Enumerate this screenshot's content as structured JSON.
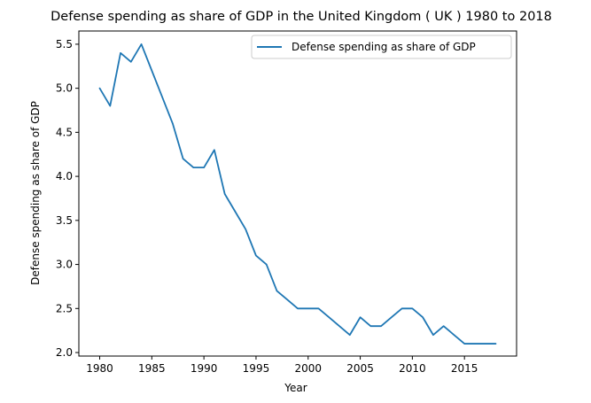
{
  "chart_data": {
    "type": "line",
    "title": "Defense spending as share of GDP in the United Kingdom ( UK ) 1980 to 2018",
    "xlabel": "Year",
    "ylabel": "Defense spending as share of GDP",
    "xlim": [
      1978,
      2020
    ],
    "ylim": [
      1.96,
      5.65
    ],
    "x_ticks": [
      1980,
      1985,
      1990,
      1995,
      2000,
      2005,
      2010,
      2015
    ],
    "y_ticks": [
      "2.0",
      "2.5",
      "3.0",
      "3.5",
      "4.0",
      "4.5",
      "5.0",
      "5.5"
    ],
    "grid": false,
    "legend_position": "top-right",
    "series": [
      {
        "name": "Defense spending as share of GDP",
        "color": "#1f77b4",
        "x": [
          1980,
          1981,
          1982,
          1983,
          1984,
          1985,
          1986,
          1987,
          1988,
          1989,
          1990,
          1991,
          1992,
          1993,
          1994,
          1995,
          1996,
          1997,
          1998,
          1999,
          2000,
          2001,
          2002,
          2003,
          2004,
          2005,
          2006,
          2007,
          2008,
          2009,
          2010,
          2011,
          2012,
          2013,
          2014,
          2015,
          2016,
          2017,
          2018
        ],
        "y": [
          5.0,
          4.8,
          5.4,
          5.3,
          5.5,
          5.2,
          4.9,
          4.6,
          4.2,
          4.1,
          4.1,
          4.3,
          3.8,
          3.6,
          3.4,
          3.1,
          3.0,
          2.7,
          2.6,
          2.5,
          2.5,
          2.5,
          2.4,
          2.3,
          2.2,
          2.4,
          2.3,
          2.3,
          2.4,
          2.5,
          2.5,
          2.4,
          2.2,
          2.3,
          2.2,
          2.1,
          2.1,
          2.1,
          2.1
        ]
      }
    ]
  }
}
